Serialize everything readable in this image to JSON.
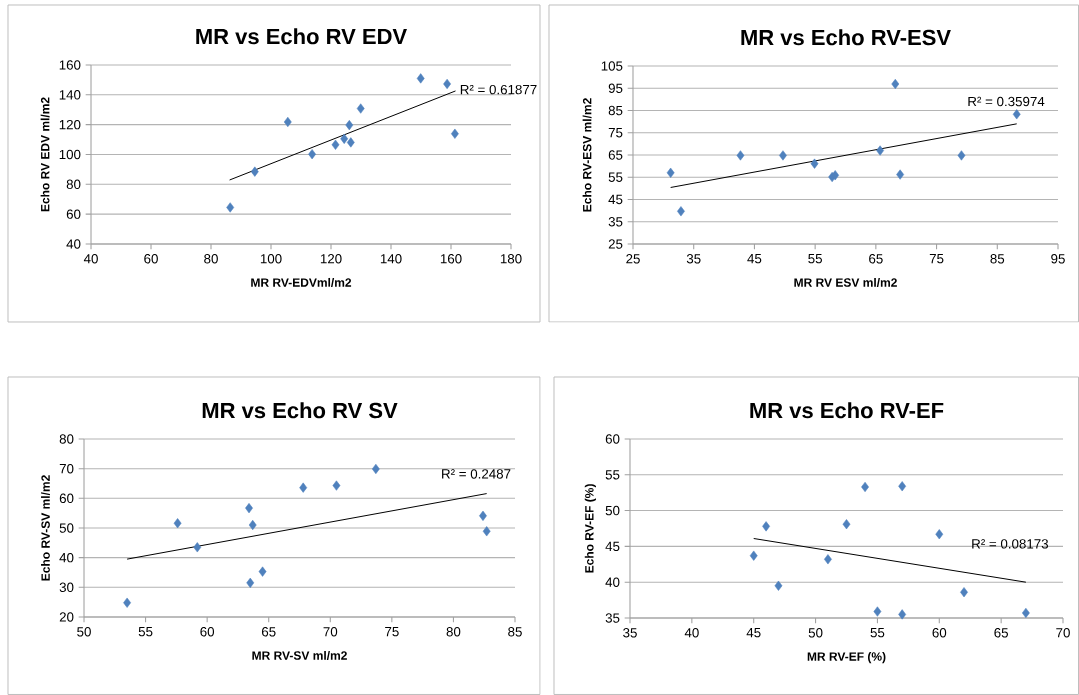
{
  "chart_data": [
    {
      "type": "scatter",
      "title": "MR vs Echo RV EDV",
      "xlabel": "MR RV-EDVml/m2",
      "ylabel": "Echo RV EDV ml/m2",
      "xlim": [
        40,
        180
      ],
      "ylim": [
        40,
        160
      ],
      "xticks": [
        40,
        60,
        80,
        100,
        120,
        140,
        160,
        180
      ],
      "yticks": [
        40,
        60,
        80,
        100,
        120,
        140,
        160
      ],
      "grid": "y",
      "marker": "diamond",
      "series": [
        {
          "color": "#4f81bd",
          "x": [
            86.4,
            94.6,
            105.6,
            113.7,
            121.5,
            124.4,
            126.6,
            126.1,
            129.9,
            149.9,
            158.7,
            161.3
          ],
          "values": [
            64.5,
            88.5,
            121.8,
            100.2,
            106.5,
            110.5,
            108.1,
            119.7,
            130.8,
            151.0,
            147.3,
            113.9
          ]
        },
        {
          "type": "line",
          "color": "#000000",
          "marker": "none",
          "x": [
            86.2,
            161.5
          ],
          "values": [
            82.9,
            142.6
          ]
        }
      ],
      "annotations": [
        "R² = 0.61877"
      ]
    },
    {
      "type": "scatter",
      "title": "MR vs Echo RV-ESV",
      "xlabel": "MR RV ESV ml/m2",
      "ylabel": "Echo RV-ESV ml/m2",
      "xlim": [
        25,
        95
      ],
      "ylim": [
        25,
        105
      ],
      "xticks": [
        25,
        35,
        45,
        55,
        65,
        75,
        85,
        95
      ],
      "yticks": [
        25,
        35,
        45,
        55,
        65,
        75,
        85,
        95,
        105
      ],
      "grid": "y",
      "marker": "diamond",
      "series": [
        {
          "color": "#4f81bd",
          "x": [
            31.2,
            32.9,
            42.7,
            49.7,
            54.9,
            57.8,
            58.3,
            65.7,
            68.2,
            69.0,
            79.1,
            88.2
          ],
          "values": [
            57.0,
            39.7,
            64.8,
            64.8,
            61.1,
            55.1,
            55.9,
            67.0,
            96.9,
            56.2,
            64.8,
            83.3
          ]
        },
        {
          "type": "line",
          "color": "#000000",
          "marker": "none",
          "x": [
            31.2,
            88.2
          ],
          "values": [
            50.4,
            79.0
          ]
        }
      ],
      "annotations": [
        "R² = 0.35974"
      ]
    },
    {
      "type": "scatter",
      "title": "MR vs Echo RV SV",
      "xlabel": "MR RV-SV ml/m2",
      "ylabel": "Echo RV-SV ml/m2",
      "xlim": [
        50,
        85
      ],
      "ylim": [
        20,
        80
      ],
      "xticks": [
        50,
        55,
        60,
        65,
        70,
        75,
        80,
        85
      ],
      "yticks": [
        20,
        30,
        40,
        50,
        60,
        70,
        80
      ],
      "grid": "y",
      "marker": "diamond",
      "series": [
        {
          "color": "#4f81bd",
          "x": [
            53.5,
            57.6,
            59.2,
            63.4,
            63.7,
            63.5,
            64.5,
            67.8,
            70.5,
            73.7,
            82.4,
            82.7
          ],
          "values": [
            24.8,
            51.6,
            43.5,
            56.7,
            51.0,
            31.5,
            35.3,
            63.6,
            64.3,
            69.9,
            54.1,
            48.9
          ]
        },
        {
          "type": "line",
          "color": "#000000",
          "marker": "none",
          "x": [
            53.5,
            82.7
          ],
          "values": [
            39.5,
            61.6
          ]
        }
      ],
      "annotations": [
        "R² = 0.2487"
      ]
    },
    {
      "type": "scatter",
      "title": "MR vs Echo RV-EF",
      "xlabel": "MR RV-EF (%)",
      "ylabel": "Echo RV-EF (%)",
      "xlim": [
        35,
        70
      ],
      "ylim": [
        35,
        60
      ],
      "xticks": [
        35,
        40,
        45,
        50,
        55,
        60,
        65,
        70
      ],
      "yticks": [
        35,
        40,
        45,
        50,
        55,
        60
      ],
      "grid": "y",
      "marker": "diamond",
      "series": [
        {
          "color": "#4f81bd",
          "x": [
            45.0,
            46.0,
            47.0,
            51.0,
            52.5,
            54.0,
            55.0,
            57.0,
            57.0,
            60.0,
            62.0,
            67.0
          ],
          "values": [
            43.7,
            47.8,
            39.5,
            43.2,
            48.1,
            53.3,
            35.9,
            53.4,
            35.5,
            46.7,
            38.6,
            35.7
          ]
        },
        {
          "type": "line",
          "color": "#000000",
          "marker": "none",
          "x": [
            45.0,
            67.0
          ],
          "values": [
            46.1,
            40.0
          ]
        }
      ],
      "annotations": [
        "R² = 0.08173"
      ]
    }
  ]
}
